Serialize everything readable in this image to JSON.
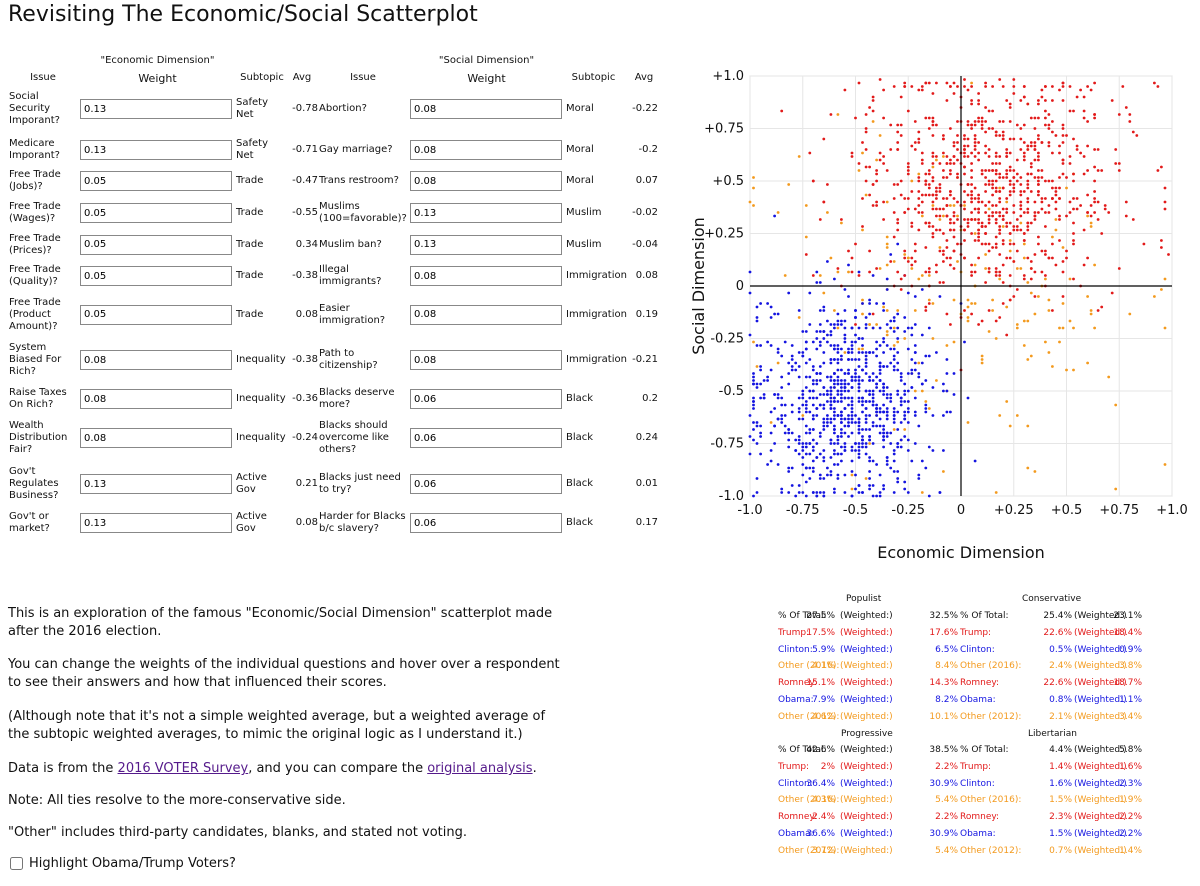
{
  "title": "Revisiting The Economic/Social Scatterplot",
  "economic": {
    "dimension_label": "\"Economic Dimension\"",
    "headers": {
      "issue": "Issue",
      "weight": "Weight",
      "subtopic": "Subtopic",
      "avg": "Avg"
    },
    "rows": [
      {
        "issue": "Social Security Imporant?",
        "weight": "0.13",
        "subtopic": "Safety Net",
        "avg": "-0.78"
      },
      {
        "issue": "Medicare Imporant?",
        "weight": "0.13",
        "subtopic": "Safety Net",
        "avg": "-0.71"
      },
      {
        "issue": "Free Trade (Jobs)?",
        "weight": "0.05",
        "subtopic": "Trade",
        "avg": "-0.47"
      },
      {
        "issue": "Free Trade (Wages)?",
        "weight": "0.05",
        "subtopic": "Trade",
        "avg": "-0.55"
      },
      {
        "issue": "Free Trade (Prices)?",
        "weight": "0.05",
        "subtopic": "Trade",
        "avg": "0.34"
      },
      {
        "issue": "Free Trade (Quality)?",
        "weight": "0.05",
        "subtopic": "Trade",
        "avg": "-0.38"
      },
      {
        "issue": "Free Trade (Product Amount)?",
        "weight": "0.05",
        "subtopic": "Trade",
        "avg": "0.08"
      },
      {
        "issue": "System Biased For Rich?",
        "weight": "0.08",
        "subtopic": "Inequality",
        "avg": "-0.38"
      },
      {
        "issue": "Raise Taxes On Rich?",
        "weight": "0.08",
        "subtopic": "Inequality",
        "avg": "-0.36"
      },
      {
        "issue": "Wealth Distribution Fair?",
        "weight": "0.08",
        "subtopic": "Inequality",
        "avg": "-0.24"
      },
      {
        "issue": "Gov't Regulates Business?",
        "weight": "0.13",
        "subtopic": "Active Gov",
        "avg": "0.21"
      },
      {
        "issue": "Gov't or market?",
        "weight": "0.13",
        "subtopic": "Active Gov",
        "avg": "0.08"
      }
    ]
  },
  "social": {
    "dimension_label": "\"Social Dimension\"",
    "headers": {
      "issue": "Issue",
      "weight": "Weight",
      "subtopic": "Subtopic",
      "avg": "Avg"
    },
    "rows": [
      {
        "issue": "Abortion?",
        "weight": "0.08",
        "subtopic": "Moral",
        "avg": "-0.22"
      },
      {
        "issue": "Gay marriage?",
        "weight": "0.08",
        "subtopic": "Moral",
        "avg": "-0.2"
      },
      {
        "issue": "Trans restroom?",
        "weight": "0.08",
        "subtopic": "Moral",
        "avg": "0.07"
      },
      {
        "issue": "Muslims (100=favorable)?",
        "weight": "0.13",
        "subtopic": "Muslim",
        "avg": "-0.02"
      },
      {
        "issue": "Muslim ban?",
        "weight": "0.13",
        "subtopic": "Muslim",
        "avg": "-0.04"
      },
      {
        "issue": "Illegal immigrants?",
        "weight": "0.08",
        "subtopic": "Immigration",
        "avg": "0.08"
      },
      {
        "issue": "Easier immigration?",
        "weight": "0.08",
        "subtopic": "Immigration",
        "avg": "0.19"
      },
      {
        "issue": "Path to citizenship?",
        "weight": "0.08",
        "subtopic": "Immigration",
        "avg": "-0.21"
      },
      {
        "issue": "Blacks deserve more?",
        "weight": "0.06",
        "subtopic": "Black",
        "avg": "0.2"
      },
      {
        "issue": "Blacks should overcome like others?",
        "weight": "0.06",
        "subtopic": "Black",
        "avg": "0.24"
      },
      {
        "issue": "Blacks just need to try?",
        "weight": "0.06",
        "subtopic": "Black",
        "avg": "0.01"
      },
      {
        "issue": "Harder for Blacks b/c slavery?",
        "weight": "0.06",
        "subtopic": "Black",
        "avg": "0.17"
      }
    ]
  },
  "chart_data": {
    "type": "scatter",
    "title": "",
    "xlabel": "Economic Dimension",
    "ylabel": "Social Dimension",
    "xlim": [
      -1.0,
      1.0
    ],
    "ylim": [
      -1.0,
      1.0
    ],
    "x_ticks": [
      "-1.0",
      "-0.75",
      "-0.5",
      "-0.25",
      "0",
      "+0.25",
      "+0.5",
      "+0.75",
      "+1.0"
    ],
    "y_ticks": [
      "+1.0",
      "+0.75",
      "+0.5",
      "+0.25",
      "0",
      "-0.25",
      "-0.5",
      "-0.75",
      "-1.0"
    ],
    "grid": true,
    "series": [
      {
        "name": "Trump",
        "color": "#e21a1a",
        "cluster": {
          "cx": 0.12,
          "cy": 0.48,
          "sx": 0.32,
          "sy": 0.28,
          "n": 850
        }
      },
      {
        "name": "Clinton",
        "color": "#1414e0",
        "cluster": {
          "cx": -0.55,
          "cy": -0.55,
          "sx": 0.22,
          "sy": 0.25,
          "n": 850
        }
      },
      {
        "name": "Other",
        "color": "#f39a1e",
        "cluster": {
          "cx": -0.05,
          "cy": -0.05,
          "sx": 0.45,
          "sy": 0.4,
          "n": 220
        }
      }
    ]
  },
  "paragraphs": {
    "p1": "This is an exploration of the famous \"Economic/Social Dimension\" scatterplot made after the 2016 election.",
    "p2": "You can change the weights of the individual questions and hover over a respondent to see their answers and how that influenced their scores.",
    "p3": "(Although note that it's not a simple weighted average, but a weighted average of the subtopic weighted averages, to mimic the original logic as I understand it.)",
    "p4_before": "Data is from the ",
    "p4_link1": "2016 VOTER Survey",
    "p4_mid": ", and you can compare the ",
    "p4_link2": "original analysis",
    "p4_after": ".",
    "p5": "Note: All ties resolve to the more-conservative side.",
    "p6": "\"Other\" includes third-party candidates, blanks, and stated not voting.",
    "checkbox_label": "Highlight Obama/Trump Voters?"
  },
  "quadrants": [
    {
      "title": "Populist",
      "lines": [
        {
          "label": "% Of Total:",
          "pct": "27.5%",
          "w": "(Weighted:)",
          "wpct": "32.5%",
          "color": "black"
        },
        {
          "label": "Trump:",
          "pct": "17.5%",
          "w": "(Weighted:)",
          "wpct": "17.6%",
          "color": "red"
        },
        {
          "label": "Clinton:",
          "pct": "5.9%",
          "w": "(Weighted:)",
          "wpct": "6.5%",
          "color": "blue"
        },
        {
          "label": "Other (2016):",
          "pct": "4.1%",
          "w": "(Weighted:)",
          "wpct": "8.4%",
          "color": "orange"
        },
        {
          "label": "Romney:",
          "pct": "15.1%",
          "w": "(Weighted:)",
          "wpct": "14.3%",
          "color": "red"
        },
        {
          "label": "Obama:",
          "pct": "7.9%",
          "w": "(Weighted:)",
          "wpct": "8.2%",
          "color": "blue"
        },
        {
          "label": "Other (2012):",
          "pct": "4.6%",
          "w": "(Weighted:)",
          "wpct": "10.1%",
          "color": "orange"
        }
      ]
    },
    {
      "title": "Conservative",
      "lines": [
        {
          "label": "% Of Total:",
          "pct": "25.4%",
          "w": "(Weighted:)",
          "wpct": "23.1%",
          "color": "black"
        },
        {
          "label": "Trump:",
          "pct": "22.6%",
          "w": "(Weighted:)",
          "wpct": "18.4%",
          "color": "red"
        },
        {
          "label": "Clinton:",
          "pct": "0.5%",
          "w": "(Weighted:)",
          "wpct": "0.9%",
          "color": "blue"
        },
        {
          "label": "Other (2016):",
          "pct": "2.4%",
          "w": "(Weighted:)",
          "wpct": "3.8%",
          "color": "orange"
        },
        {
          "label": "Romney:",
          "pct": "22.6%",
          "w": "(Weighted:)",
          "wpct": "18.7%",
          "color": "red"
        },
        {
          "label": "Obama:",
          "pct": "0.8%",
          "w": "(Weighted:)",
          "wpct": "1.1%",
          "color": "blue"
        },
        {
          "label": "Other (2012):",
          "pct": "2.1%",
          "w": "(Weighted:)",
          "wpct": "3.4%",
          "color": "orange"
        }
      ]
    },
    {
      "title": "Progressive",
      "lines": [
        {
          "label": "% Of Total:",
          "pct": "42.6%",
          "w": "(Weighted:)",
          "wpct": "38.5%",
          "color": "black"
        },
        {
          "label": "Trump:",
          "pct": "2%",
          "w": "(Weighted:)",
          "wpct": "2.2%",
          "color": "red"
        },
        {
          "label": "Clinton:",
          "pct": "36.4%",
          "w": "(Weighted:)",
          "wpct": "30.9%",
          "color": "blue"
        },
        {
          "label": "Other (2016):",
          "pct": "4.3%",
          "w": "(Weighted:)",
          "wpct": "5.4%",
          "color": "orange"
        },
        {
          "label": "Romney:",
          "pct": "2.4%",
          "w": "(Weighted:)",
          "wpct": "2.2%",
          "color": "red"
        },
        {
          "label": "Obama:",
          "pct": "36.6%",
          "w": "(Weighted:)",
          "wpct": "30.9%",
          "color": "blue"
        },
        {
          "label": "Other (2012):",
          "pct": "3.7%",
          "w": "(Weighted:)",
          "wpct": "5.4%",
          "color": "orange"
        }
      ]
    },
    {
      "title": "Libertarian",
      "lines": [
        {
          "label": "% Of Total:",
          "pct": "4.4%",
          "w": "(Weighted:)",
          "wpct": "5.8%",
          "color": "black"
        },
        {
          "label": "Trump:",
          "pct": "1.4%",
          "w": "(Weighted:)",
          "wpct": "1.6%",
          "color": "red"
        },
        {
          "label": "Clinton:",
          "pct": "1.6%",
          "w": "(Weighted:)",
          "wpct": "2.3%",
          "color": "blue"
        },
        {
          "label": "Other (2016):",
          "pct": "1.5%",
          "w": "(Weighted:)",
          "wpct": "1.9%",
          "color": "orange"
        },
        {
          "label": "Romney:",
          "pct": "2.3%",
          "w": "(Weighted:)",
          "wpct": "2.2%",
          "color": "red"
        },
        {
          "label": "Obama:",
          "pct": "1.5%",
          "w": "(Weighted:)",
          "wpct": "2.2%",
          "color": "blue"
        },
        {
          "label": "Other (2012):",
          "pct": "0.7%",
          "w": "(Weighted:)",
          "wpct": "1.4%",
          "color": "orange"
        }
      ]
    }
  ]
}
